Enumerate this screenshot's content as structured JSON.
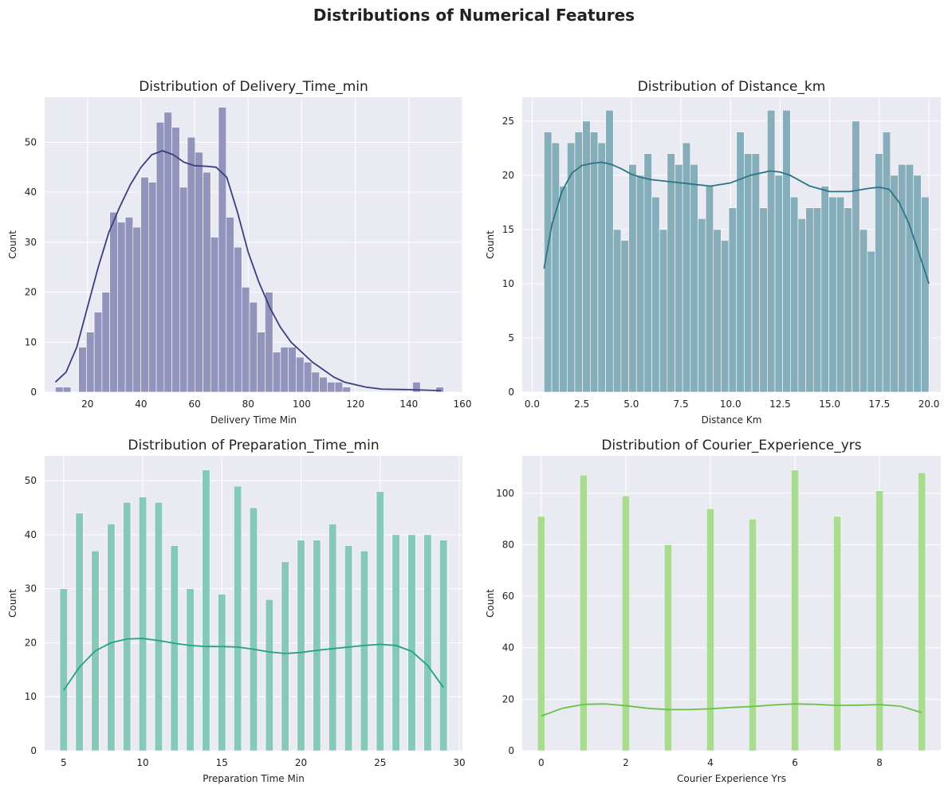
{
  "suptitle": "Distributions of Numerical Features",
  "panel_bg": "#eaeaf2",
  "chart_data": [
    {
      "type": "histogram",
      "title": "Distribution of Delivery_Time_min",
      "xlabel": "Delivery Time Min",
      "ylabel": "Count",
      "xlim": [
        4,
        160
      ],
      "ylim": [
        0,
        59
      ],
      "xticks": [
        20,
        40,
        60,
        80,
        100,
        120,
        140,
        160
      ],
      "yticks": [
        0,
        10,
        20,
        30,
        40,
        50
      ],
      "grid": true,
      "legend": "none",
      "bar_color": "#9294bc",
      "kde_color": "#3b3f80",
      "bin_start": 8,
      "bin_width": 2.9,
      "counts": [
        1,
        1,
        0,
        9,
        12,
        16,
        20,
        36,
        34,
        35,
        33,
        43,
        42,
        54,
        56,
        53,
        41,
        51,
        48,
        44,
        31,
        57,
        35,
        29,
        21,
        18,
        12,
        20,
        8,
        9,
        9,
        7,
        6,
        4,
        3,
        2,
        2,
        1,
        0,
        0,
        0,
        0,
        0,
        0,
        0,
        0,
        2,
        0,
        0,
        1
      ],
      "kde": [
        [
          8,
          2
        ],
        [
          12,
          4
        ],
        [
          16,
          9
        ],
        [
          20,
          17
        ],
        [
          24,
          25
        ],
        [
          28,
          32
        ],
        [
          32,
          37
        ],
        [
          36,
          41.5
        ],
        [
          40,
          45
        ],
        [
          44,
          47.5
        ],
        [
          48,
          48.3
        ],
        [
          52,
          47.5
        ],
        [
          56,
          46
        ],
        [
          60,
          45.3
        ],
        [
          64,
          45.2
        ],
        [
          68,
          45
        ],
        [
          72,
          43
        ],
        [
          76,
          36
        ],
        [
          80,
          28
        ],
        [
          84,
          22
        ],
        [
          88,
          17
        ],
        [
          92,
          13
        ],
        [
          96,
          10
        ],
        [
          100,
          8
        ],
        [
          104,
          6
        ],
        [
          108,
          4.5
        ],
        [
          112,
          3
        ],
        [
          116,
          2
        ],
        [
          120,
          1.5
        ],
        [
          124,
          1
        ],
        [
          130,
          0.6
        ],
        [
          140,
          0.5
        ],
        [
          152,
          0.3
        ]
      ]
    },
    {
      "type": "histogram",
      "title": "Distribution of Distance_km",
      "xlabel": "Distance Km",
      "ylabel": "Count",
      "xlim": [
        -0.5,
        20.6
      ],
      "ylim": [
        0,
        27.2
      ],
      "xticks": [
        0.0,
        2.5,
        5.0,
        7.5,
        10.0,
        12.5,
        15.0,
        17.5,
        20.0
      ],
      "yticks": [
        0,
        5,
        10,
        15,
        20,
        25
      ],
      "grid": true,
      "legend": "none",
      "bar_color": "#86aeba",
      "kde_color": "#2a7585",
      "bin_start": 0.6,
      "bin_width": 0.388,
      "counts": [
        24,
        23,
        19,
        23,
        24,
        25,
        24,
        23,
        26,
        15,
        14,
        21,
        20,
        22,
        18,
        15,
        22,
        21,
        23,
        21,
        16,
        19,
        15,
        14,
        17,
        24,
        22,
        22,
        17,
        26,
        20,
        26,
        18,
        16,
        17,
        17,
        19,
        18,
        18,
        17,
        25,
        15,
        13,
        22,
        24,
        20,
        21,
        21,
        20,
        18
      ],
      "kde": [
        [
          0.6,
          11.4
        ],
        [
          1.0,
          15.5
        ],
        [
          1.5,
          18.5
        ],
        [
          2.0,
          20.2
        ],
        [
          2.5,
          20.9
        ],
        [
          3.0,
          21.1
        ],
        [
          3.5,
          21.2
        ],
        [
          4.0,
          21.0
        ],
        [
          4.5,
          20.6
        ],
        [
          5.0,
          20.1
        ],
        [
          5.5,
          19.8
        ],
        [
          6.0,
          19.6
        ],
        [
          7.0,
          19.4
        ],
        [
          8.0,
          19.2
        ],
        [
          9.0,
          19.0
        ],
        [
          10.0,
          19.3
        ],
        [
          11.0,
          20.0
        ],
        [
          12.0,
          20.4
        ],
        [
          12.5,
          20.3
        ],
        [
          13.0,
          20.0
        ],
        [
          14.0,
          19.0
        ],
        [
          15.0,
          18.5
        ],
        [
          16.0,
          18.5
        ],
        [
          17.0,
          18.8
        ],
        [
          17.5,
          18.9
        ],
        [
          18.0,
          18.7
        ],
        [
          18.5,
          17.5
        ],
        [
          19.0,
          15.5
        ],
        [
          19.5,
          12.8
        ],
        [
          20.0,
          10.0
        ]
      ]
    },
    {
      "type": "histogram",
      "title": "Distribution of Preparation_Time_min",
      "xlabel": "Preparation Time Min",
      "ylabel": "Count",
      "xlim": [
        3.8,
        30.2
      ],
      "ylim": [
        0,
        54.6
      ],
      "xticks": [
        5,
        10,
        15,
        20,
        25,
        30
      ],
      "yticks": [
        0,
        10,
        20,
        30,
        40,
        50
      ],
      "grid": true,
      "legend": "none",
      "bar_color": "#86c9b8",
      "kde_color": "#23a37f",
      "x": [
        5,
        6,
        7,
        8,
        9,
        10,
        11,
        12,
        13,
        14,
        15,
        16,
        17,
        18,
        19,
        20,
        21,
        22,
        23,
        24,
        25,
        26,
        27,
        28,
        29
      ],
      "counts": [
        30,
        44,
        37,
        42,
        46,
        47,
        46,
        38,
        30,
        52,
        29,
        49,
        45,
        28,
        35,
        39,
        39,
        42,
        38,
        37,
        48,
        40,
        40,
        40,
        39
      ],
      "bar_width": 0.48,
      "kde": [
        [
          5,
          11.2
        ],
        [
          6,
          15.5
        ],
        [
          7,
          18.5
        ],
        [
          8,
          20.0
        ],
        [
          9,
          20.7
        ],
        [
          10,
          20.8
        ],
        [
          11,
          20.4
        ],
        [
          12,
          19.9
        ],
        [
          13,
          19.5
        ],
        [
          14,
          19.3
        ],
        [
          15,
          19.3
        ],
        [
          16,
          19.2
        ],
        [
          17,
          18.8
        ],
        [
          18,
          18.3
        ],
        [
          19,
          18.0
        ],
        [
          20,
          18.2
        ],
        [
          21,
          18.6
        ],
        [
          22,
          18.9
        ],
        [
          23,
          19.2
        ],
        [
          24,
          19.5
        ],
        [
          25,
          19.7
        ],
        [
          26,
          19.5
        ],
        [
          27,
          18.4
        ],
        [
          28,
          15.8
        ],
        [
          29,
          11.7
        ]
      ]
    },
    {
      "type": "histogram",
      "title": "Distribution of Courier_Experience_yrs",
      "xlabel": "Courier Experience Yrs",
      "ylabel": "Count",
      "xlim": [
        -0.45,
        9.45
      ],
      "ylim": [
        0,
        114.5
      ],
      "xticks": [
        0,
        2,
        4,
        6,
        8
      ],
      "yticks": [
        0,
        20,
        40,
        60,
        80,
        100
      ],
      "grid": true,
      "legend": "none",
      "bar_color": "#a9dc91",
      "kde_color": "#6cc24a",
      "x": [
        0,
        1,
        2,
        3,
        4,
        5,
        6,
        7,
        8,
        9
      ],
      "counts": [
        91,
        107,
        99,
        80,
        94,
        90,
        109,
        91,
        101,
        108
      ],
      "bar_width": 0.18,
      "kde": [
        [
          0,
          13.5
        ],
        [
          0.5,
          16.5
        ],
        [
          1,
          18
        ],
        [
          1.5,
          18.2
        ],
        [
          2,
          17.5
        ],
        [
          2.5,
          16.5
        ],
        [
          3,
          16
        ],
        [
          3.5,
          16
        ],
        [
          4,
          16.3
        ],
        [
          4.5,
          16.8
        ],
        [
          5,
          17.2
        ],
        [
          5.5,
          17.8
        ],
        [
          6,
          18.2
        ],
        [
          6.5,
          18
        ],
        [
          7,
          17.6
        ],
        [
          7.5,
          17.7
        ],
        [
          8,
          17.9
        ],
        [
          8.5,
          17.3
        ],
        [
          9,
          14.8
        ]
      ]
    }
  ]
}
